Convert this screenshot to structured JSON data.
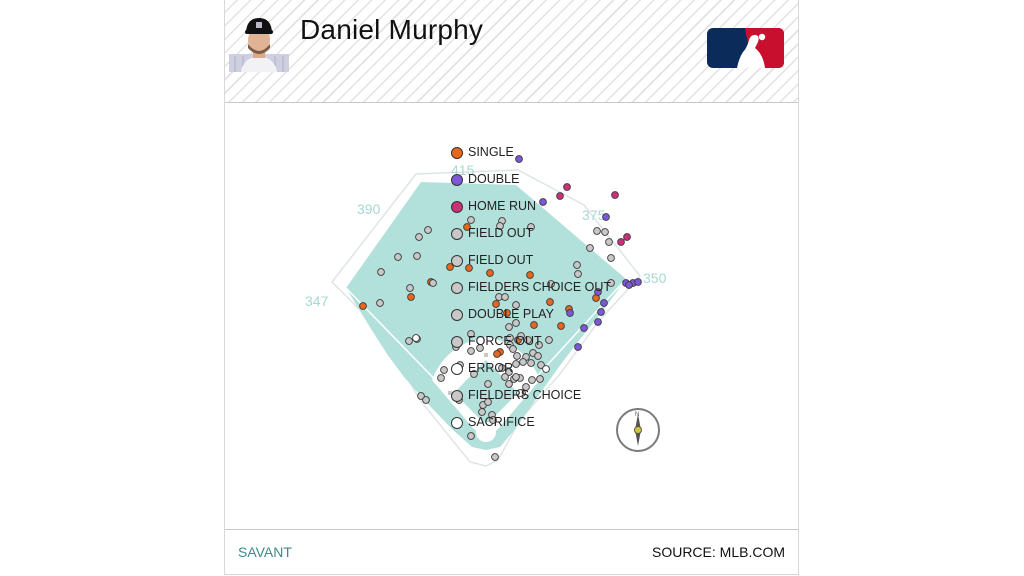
{
  "player": {
    "name": "Daniel Murphy"
  },
  "colors": {
    "grass": "#b2e0db",
    "infield_dirt": "#ffffff",
    "outline": "#d6dfe0",
    "distance_label": "#a7d8d2",
    "savant": "#3c8b8c",
    "mlb_blue": "#0b2b5b",
    "mlb_red": "#c8102e"
  },
  "footer": {
    "left": "SAVANT",
    "right": "SOURCE: MLB.COM"
  },
  "icons": {
    "compass": "compass-icon",
    "logo": "mlb-logo-icon",
    "headshot": "player-headshot-icon"
  },
  "chart_data": {
    "type": "scatter",
    "title": "Daniel Murphy",
    "distances": [
      "415",
      "390",
      "375",
      "347",
      "350"
    ],
    "legend": [
      {
        "label": "SINGLE",
        "color": "#e8671c"
      },
      {
        "label": "DOUBLE",
        "color": "#7c58d8"
      },
      {
        "label": "HOME RUN",
        "color": "#cc3077"
      },
      {
        "label": "FIELD OUT",
        "color": "#c8c8c8"
      },
      {
        "label": "FIELD OUT",
        "color": "#c8c8c8"
      },
      {
        "label": "FIELDERS CHOICE OUT",
        "color": "#c8c8c8"
      },
      {
        "label": "DOUBLE PLAY",
        "color": "#c8c8c8"
      },
      {
        "label": "FORCE OUT",
        "color": "#c8c8c8"
      },
      {
        "label": "ERROR",
        "color": "#ffffff"
      },
      {
        "label": "FIELDERS CHOICE",
        "color": "#c8c8c8"
      },
      {
        "label": "SACRIFICE",
        "color": "#ffffff"
      }
    ],
    "series": [
      {
        "name": "SINGLE",
        "color": "#e8671c",
        "points": [
          [
            467,
            227
          ],
          [
            450,
            267
          ],
          [
            469,
            268
          ],
          [
            490,
            273
          ],
          [
            530,
            275
          ],
          [
            431,
            282
          ],
          [
            411,
            297
          ],
          [
            363,
            306
          ],
          [
            496,
            304
          ],
          [
            507,
            313
          ],
          [
            550,
            302
          ],
          [
            569,
            309
          ],
          [
            596,
            298
          ],
          [
            534,
            325
          ],
          [
            561,
            326
          ],
          [
            518,
            340
          ],
          [
            500,
            352
          ],
          [
            497,
            354
          ]
        ]
      },
      {
        "name": "DOUBLE",
        "color": "#7c58d8",
        "points": [
          [
            519,
            159
          ],
          [
            543,
            202
          ],
          [
            606,
            217
          ],
          [
            598,
            292
          ],
          [
            604,
            303
          ],
          [
            601,
            312
          ],
          [
            598,
            322
          ],
          [
            584,
            328
          ],
          [
            578,
            347
          ],
          [
            570,
            313
          ],
          [
            626,
            283
          ],
          [
            633,
            283
          ],
          [
            638,
            282
          ],
          [
            629,
            285
          ]
        ]
      },
      {
        "name": "HOME RUN",
        "color": "#cc3077",
        "points": [
          [
            567,
            187
          ],
          [
            560,
            196
          ],
          [
            615,
            195
          ],
          [
            627,
            237
          ],
          [
            621,
            242
          ]
        ]
      },
      {
        "name": "OUT",
        "color": "#c8c8c8",
        "points": [
          [
            471,
            220
          ],
          [
            502,
            221
          ],
          [
            500,
            226
          ],
          [
            531,
            227
          ],
          [
            428,
            230
          ],
          [
            419,
            237
          ],
          [
            597,
            231
          ],
          [
            605,
            232
          ],
          [
            609,
            242
          ],
          [
            590,
            248
          ],
          [
            398,
            257
          ],
          [
            417,
            256
          ],
          [
            611,
            258
          ],
          [
            577,
            265
          ],
          [
            381,
            272
          ],
          [
            578,
            274
          ],
          [
            611,
            283
          ],
          [
            433,
            283
          ],
          [
            410,
            288
          ],
          [
            380,
            303
          ],
          [
            499,
            297
          ],
          [
            505,
            297
          ],
          [
            516,
            305
          ],
          [
            551,
            284
          ],
          [
            409,
            341
          ],
          [
            417,
            339
          ],
          [
            471,
            334
          ],
          [
            509,
            327
          ],
          [
            516,
            323
          ],
          [
            510,
            338
          ],
          [
            521,
            336
          ],
          [
            528,
            340
          ],
          [
            539,
            345
          ],
          [
            549,
            340
          ],
          [
            510,
            345
          ],
          [
            513,
            349
          ],
          [
            517,
            356
          ],
          [
            533,
            353
          ],
          [
            526,
            357
          ],
          [
            538,
            356
          ],
          [
            456,
            347
          ],
          [
            471,
            351
          ],
          [
            480,
            348
          ],
          [
            516,
            364
          ],
          [
            523,
            362
          ],
          [
            531,
            363
          ],
          [
            541,
            365
          ],
          [
            460,
            365
          ],
          [
            444,
            370
          ],
          [
            474,
            374
          ],
          [
            502,
            368
          ],
          [
            509,
            372
          ],
          [
            514,
            379
          ],
          [
            520,
            378
          ],
          [
            532,
            380
          ],
          [
            526,
            387
          ],
          [
            540,
            379
          ],
          [
            505,
            377
          ],
          [
            441,
            378
          ],
          [
            488,
            384
          ],
          [
            522,
            393
          ],
          [
            509,
            384
          ],
          [
            421,
            396
          ],
          [
            426,
            400
          ],
          [
            459,
            400
          ],
          [
            483,
            405
          ],
          [
            488,
            402
          ],
          [
            482,
            412
          ],
          [
            492,
            415
          ],
          [
            493,
            420
          ],
          [
            471,
            436
          ],
          [
            495,
            457
          ],
          [
            516,
            377
          ]
        ]
      },
      {
        "name": "ERROR / SACRIFICE",
        "color": "#ffffff",
        "points": [
          [
            416,
            338
          ],
          [
            546,
            369
          ],
          [
            520,
            393
          ]
        ]
      }
    ]
  }
}
